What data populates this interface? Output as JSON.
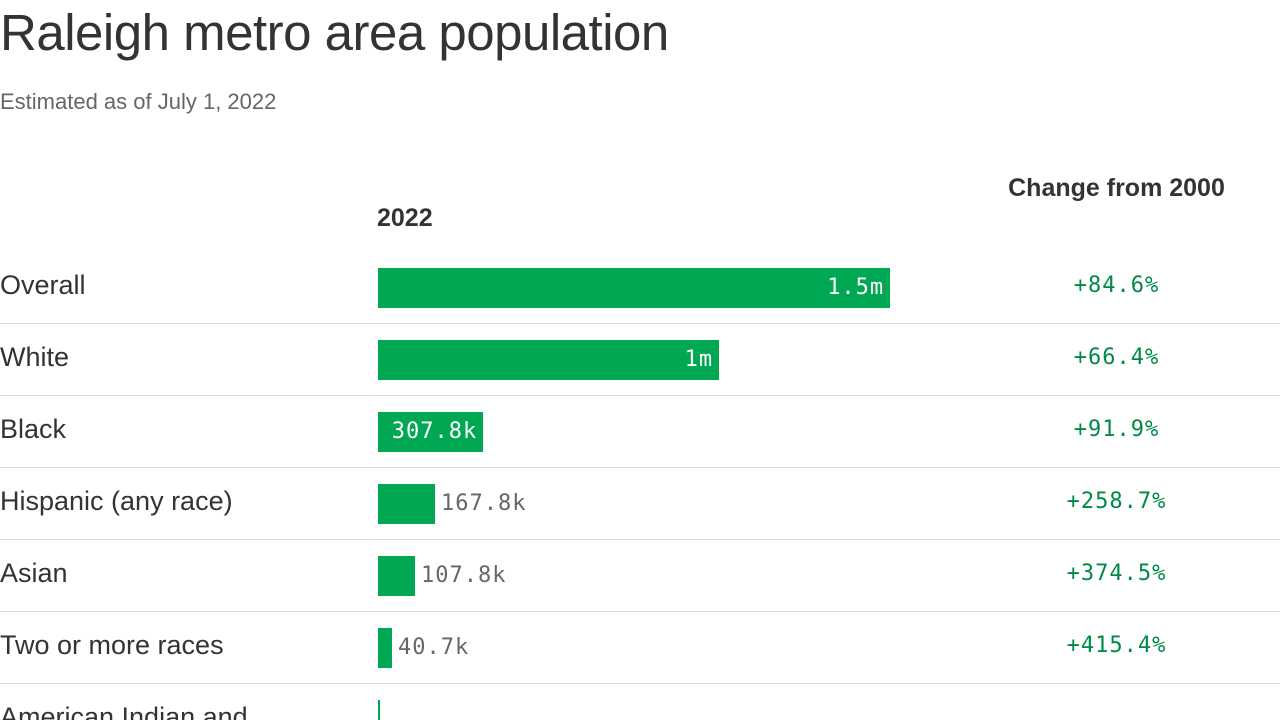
{
  "chart_data": {
    "type": "bar",
    "title": "Raleigh metro area population",
    "subtitle": "Estimated as of July 1, 2022",
    "value_column_header": "2022",
    "change_column_header": "Change from 2000",
    "bar_color": "#00a854",
    "change_color": "#008a45",
    "max_value": 1500000,
    "rows": [
      {
        "category": "Overall",
        "value": 1500000,
        "value_label": "1.5m",
        "change": "+84.6%"
      },
      {
        "category": "White",
        "value": 1000000,
        "value_label": "1m",
        "change": "+66.4%"
      },
      {
        "category": "Black",
        "value": 307800,
        "value_label": "307.8k",
        "change": "+91.9%"
      },
      {
        "category": "Hispanic (any race)",
        "value": 167800,
        "value_label": "167.8k",
        "change": "+258.7%"
      },
      {
        "category": "Asian",
        "value": 107800,
        "value_label": "107.8k",
        "change": "+374.5%"
      },
      {
        "category": "Two or more races",
        "value": 40700,
        "value_label": "40.7k",
        "change": "+415.4%"
      },
      {
        "category": "American Indian and",
        "value": 5000,
        "value_label": "",
        "change": ""
      }
    ]
  }
}
